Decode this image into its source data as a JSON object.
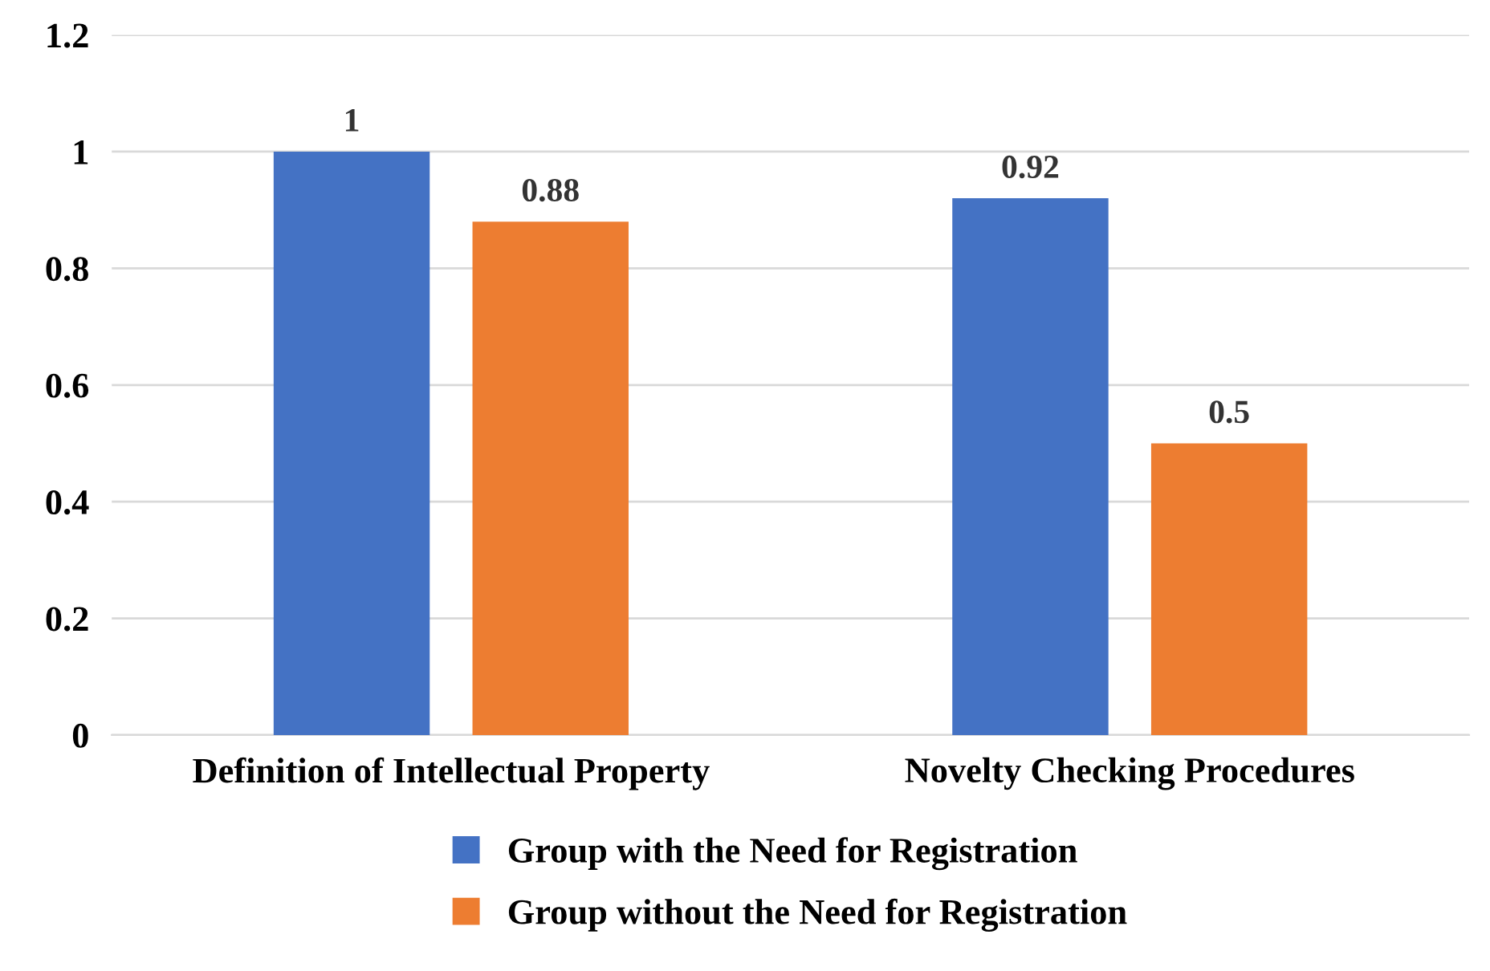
{
  "chart_data": {
    "type": "bar",
    "categories": [
      "Definition of Intellectual Property",
      "Novelty Checking Procedures"
    ],
    "series": [
      {
        "name": "Group with the Need for Registration",
        "color": "#4472c4",
        "values": [
          1,
          0.92
        ]
      },
      {
        "name": "Group without the Need for Registration",
        "color": "#ed7d31",
        "values": [
          0.88,
          0.5
        ]
      }
    ],
    "ylim": [
      0,
      1.2
    ],
    "yticks": [
      {
        "value": 0,
        "label": "0"
      },
      {
        "value": 0.2,
        "label": "0.2"
      },
      {
        "value": 0.4,
        "label": "0.4"
      },
      {
        "value": 0.6,
        "label": "0.6"
      },
      {
        "value": 0.8,
        "label": "0.8"
      },
      {
        "value": 1,
        "label": "1"
      },
      {
        "value": 1.2,
        "label": "1.2"
      }
    ],
    "grid": "y",
    "legend": "bottom",
    "data_labels": true
  }
}
